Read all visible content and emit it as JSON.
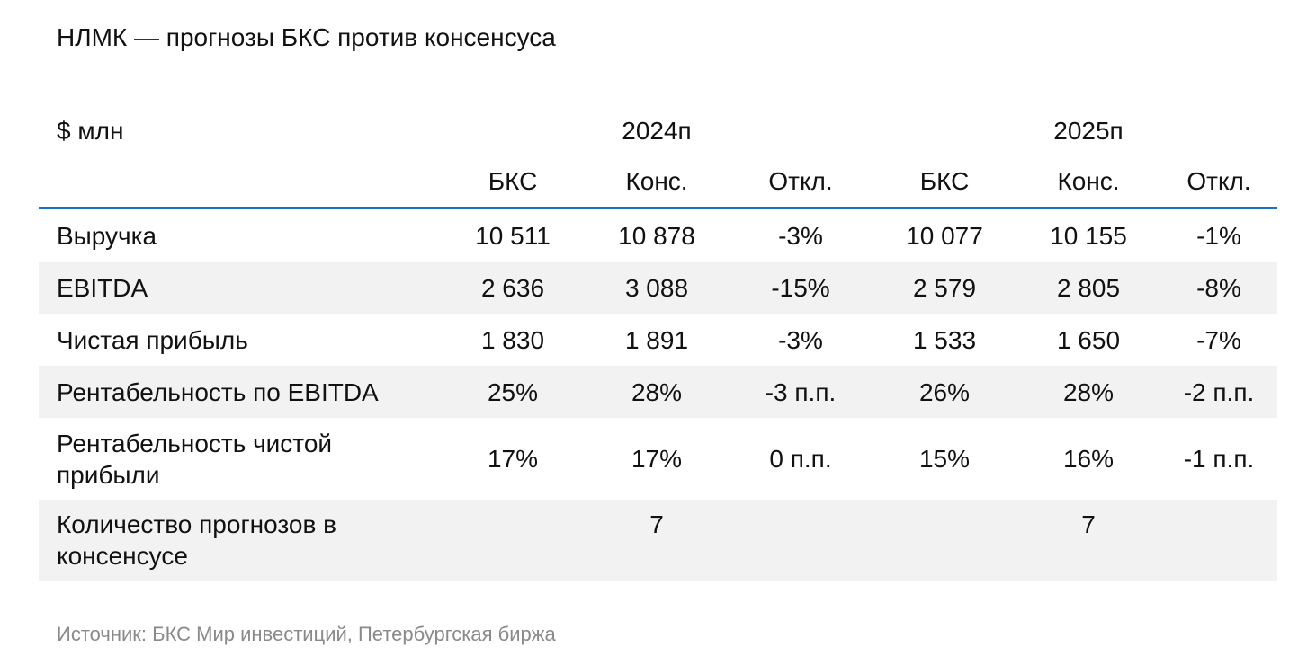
{
  "header": {
    "title": "НЛМК — прогнозы БКС против консенсуса"
  },
  "table": {
    "unit": "$ млн",
    "years": [
      "2024п",
      "2025п"
    ],
    "subheaders": [
      "БКС",
      "Конс.",
      "Откл.",
      "БКС",
      "Конс.",
      "Откл."
    ],
    "rows": [
      {
        "label": "Выручка",
        "cells": [
          "10 511",
          "10 878",
          "-3%",
          "10 077",
          "10 155",
          "-1%"
        ]
      },
      {
        "label": "EBITDA",
        "cells": [
          "2 636",
          "3 088",
          "-15%",
          "2 579",
          "2 805",
          "-8%"
        ]
      },
      {
        "label": "Чистая прибыль",
        "cells": [
          "1 830",
          "1 891",
          "-3%",
          "1 533",
          "1 650",
          "-7%"
        ]
      },
      {
        "label": "Рентабельность по EBITDA",
        "cells": [
          "25%",
          "28%",
          "-3 п.п.",
          "26%",
          "28%",
          "-2 п.п."
        ]
      },
      {
        "label": "Рентабельность чистой прибыли",
        "cells": [
          "17%",
          "17%",
          "0 п.п.",
          "15%",
          "16%",
          "-1 п.п."
        ]
      }
    ],
    "count_row": {
      "label": "Количество прогнозов в консенсусе",
      "counts": [
        "7",
        "7"
      ]
    }
  },
  "footer": {
    "source": "Источник: БКС Мир инвестиций, Петербургская биржа"
  }
}
